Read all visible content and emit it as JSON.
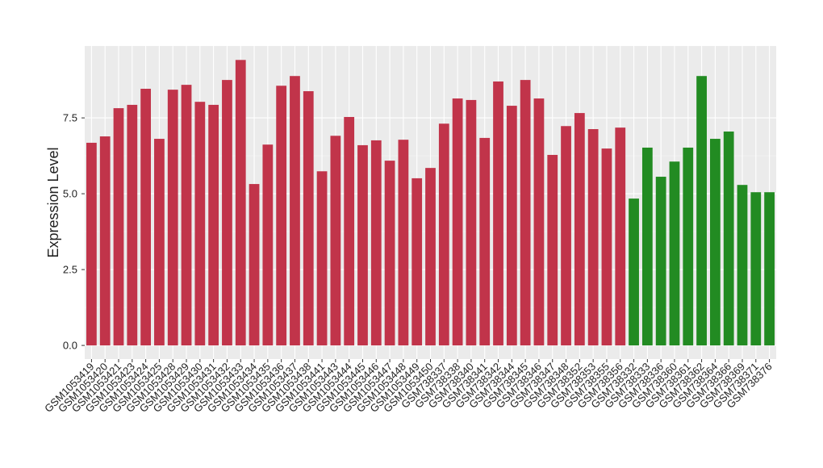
{
  "chart_data": {
    "type": "bar",
    "y_label": "Expression Level",
    "categories": [
      "GSM1053419",
      "GSM1053420",
      "GSM1053421",
      "GSM1053423",
      "GSM1053424",
      "GSM1053425",
      "GSM1053428",
      "GSM1053429",
      "GSM1053430",
      "GSM1053431",
      "GSM1053432",
      "GSM1053433",
      "GSM1053434",
      "GSM1053435",
      "GSM1053436",
      "GSM1053437",
      "GSM1053438",
      "GSM1053441",
      "GSM1053443",
      "GSM1053444",
      "GSM1053445",
      "GSM1053446",
      "GSM1053447",
      "GSM1053448",
      "GSM1053449",
      "GSM1053450",
      "GSM738337",
      "GSM738338",
      "GSM738340",
      "GSM738341",
      "GSM738342",
      "GSM738344",
      "GSM738345",
      "GSM738346",
      "GSM738347",
      "GSM738348",
      "GSM738352",
      "GSM738353",
      "GSM738355",
      "GSM738356",
      "GSM738332",
      "GSM738333",
      "GSM738336",
      "GSM738360",
      "GSM738361",
      "GSM738362",
      "GSM738364",
      "GSM738366",
      "GSM738369",
      "GSM738371",
      "GSM738376"
    ],
    "values": [
      6.68,
      6.89,
      7.82,
      7.93,
      8.46,
      6.81,
      8.43,
      8.59,
      8.03,
      7.93,
      8.75,
      9.41,
      5.32,
      6.62,
      8.56,
      8.88,
      8.38,
      5.74,
      6.91,
      7.53,
      6.6,
      6.76,
      6.09,
      6.78,
      5.51,
      5.85,
      7.31,
      8.14,
      8.09,
      6.84,
      8.7,
      7.9,
      8.75,
      8.14,
      6.28,
      7.23,
      7.66,
      7.13,
      6.49,
      7.18,
      4.84,
      6.52,
      5.56,
      6.06,
      6.52,
      8.88,
      6.81,
      7.05,
      5.29,
      5.05,
      5.05
    ],
    "colors": [
      "#c1344a",
      "#c1344a",
      "#c1344a",
      "#c1344a",
      "#c1344a",
      "#c1344a",
      "#c1344a",
      "#c1344a",
      "#c1344a",
      "#c1344a",
      "#c1344a",
      "#c1344a",
      "#c1344a",
      "#c1344a",
      "#c1344a",
      "#c1344a",
      "#c1344a",
      "#c1344a",
      "#c1344a",
      "#c1344a",
      "#c1344a",
      "#c1344a",
      "#c1344a",
      "#c1344a",
      "#c1344a",
      "#c1344a",
      "#c1344a",
      "#c1344a",
      "#c1344a",
      "#c1344a",
      "#c1344a",
      "#c1344a",
      "#c1344a",
      "#c1344a",
      "#c1344a",
      "#c1344a",
      "#c1344a",
      "#c1344a",
      "#c1344a",
      "#c1344a",
      "#228b22",
      "#228b22",
      "#228b22",
      "#228b22",
      "#228b22",
      "#228b22",
      "#228b22",
      "#228b22",
      "#228b22",
      "#228b22",
      "#228b22"
    ],
    "ylim": [
      -0.45,
      9.87
    ],
    "yticks": [
      {
        "value": 0,
        "label": "0.0"
      },
      2.5,
      {
        "value": 5,
        "label": "5.0"
      },
      7.5
    ],
    "grid": true
  }
}
